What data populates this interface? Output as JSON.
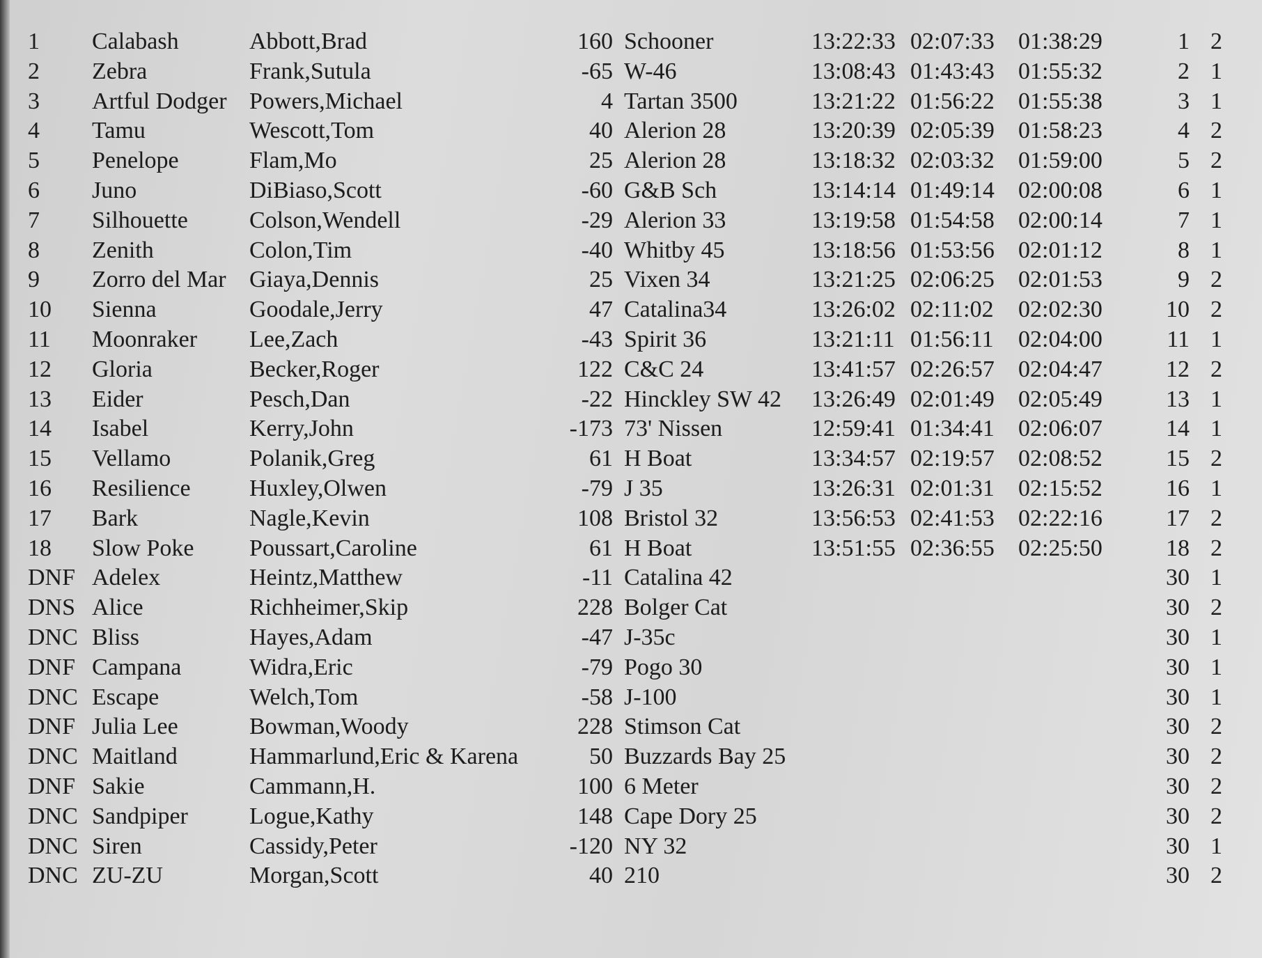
{
  "table": {
    "rows": [
      {
        "place": "1",
        "boat": "Calabash",
        "skipper": "Abbott,Brad",
        "rating": "160",
        "type": "Schooner",
        "finish": "13:22:33",
        "elapsed": "02:07:33",
        "corrected": "01:38:29",
        "points": "1",
        "division": "2"
      },
      {
        "place": "2",
        "boat": "Zebra",
        "skipper": "Frank,Sutula",
        "rating": "-65",
        "type": "W-46",
        "finish": "13:08:43",
        "elapsed": "01:43:43",
        "corrected": "01:55:32",
        "points": "2",
        "division": "1"
      },
      {
        "place": "3",
        "boat": "Artful Dodger",
        "skipper": "Powers,Michael",
        "rating": "4",
        "type": "Tartan 3500",
        "finish": "13:21:22",
        "elapsed": "01:56:22",
        "corrected": "01:55:38",
        "points": "3",
        "division": "1"
      },
      {
        "place": "4",
        "boat": "Tamu",
        "skipper": "Wescott,Tom",
        "rating": "40",
        "type": "Alerion 28",
        "finish": "13:20:39",
        "elapsed": "02:05:39",
        "corrected": "01:58:23",
        "points": "4",
        "division": "2"
      },
      {
        "place": "5",
        "boat": "Penelope",
        "skipper": "Flam,Mo",
        "rating": "25",
        "type": "Alerion 28",
        "finish": "13:18:32",
        "elapsed": "02:03:32",
        "corrected": "01:59:00",
        "points": "5",
        "division": "2"
      },
      {
        "place": "6",
        "boat": "Juno",
        "skipper": "DiBiaso,Scott",
        "rating": "-60",
        "type": "G&B Sch",
        "finish": "13:14:14",
        "elapsed": "01:49:14",
        "corrected": "02:00:08",
        "points": "6",
        "division": "1"
      },
      {
        "place": "7",
        "boat": "Silhouette",
        "skipper": "Colson,Wendell",
        "rating": "-29",
        "type": "Alerion 33",
        "finish": "13:19:58",
        "elapsed": "01:54:58",
        "corrected": "02:00:14",
        "points": "7",
        "division": "1"
      },
      {
        "place": "8",
        "boat": "Zenith",
        "skipper": "Colon,Tim",
        "rating": "-40",
        "type": "Whitby 45",
        "finish": "13:18:56",
        "elapsed": "01:53:56",
        "corrected": "02:01:12",
        "points": "8",
        "division": "1"
      },
      {
        "place": "9",
        "boat": "Zorro del Mar",
        "skipper": "Giaya,Dennis",
        "rating": "25",
        "type": "Vixen 34",
        "finish": "13:21:25",
        "elapsed": "02:06:25",
        "corrected": "02:01:53",
        "points": "9",
        "division": "2"
      },
      {
        "place": "10",
        "boat": "Sienna",
        "skipper": "Goodale,Jerry",
        "rating": "47",
        "type": "Catalina34",
        "finish": "13:26:02",
        "elapsed": "02:11:02",
        "corrected": "02:02:30",
        "points": "10",
        "division": "2"
      },
      {
        "place": "11",
        "boat": "Moonraker",
        "skipper": "Lee,Zach",
        "rating": "-43",
        "type": "Spirit 36",
        "finish": "13:21:11",
        "elapsed": "01:56:11",
        "corrected": "02:04:00",
        "points": "11",
        "division": "1"
      },
      {
        "place": "12",
        "boat": "Gloria",
        "skipper": "Becker,Roger",
        "rating": "122",
        "type": "C&C 24",
        "finish": "13:41:57",
        "elapsed": "02:26:57",
        "corrected": "02:04:47",
        "points": "12",
        "division": "2"
      },
      {
        "place": "13",
        "boat": "Eider",
        "skipper": "Pesch,Dan",
        "rating": "-22",
        "type": "Hinckley SW 42",
        "finish": "13:26:49",
        "elapsed": "02:01:49",
        "corrected": "02:05:49",
        "points": "13",
        "division": "1"
      },
      {
        "place": "14",
        "boat": "Isabel",
        "skipper": "Kerry,John",
        "rating": "-173",
        "type": "73' Nissen",
        "finish": "12:59:41",
        "elapsed": "01:34:41",
        "corrected": "02:06:07",
        "points": "14",
        "division": "1"
      },
      {
        "place": "15",
        "boat": "Vellamo",
        "skipper": "Polanik,Greg",
        "rating": "61",
        "type": "H Boat",
        "finish": "13:34:57",
        "elapsed": "02:19:57",
        "corrected": "02:08:52",
        "points": "15",
        "division": "2"
      },
      {
        "place": "16",
        "boat": "Resilience",
        "skipper": "Huxley,Olwen",
        "rating": "-79",
        "type": "J 35",
        "finish": "13:26:31",
        "elapsed": "02:01:31",
        "corrected": "02:15:52",
        "points": "16",
        "division": "1"
      },
      {
        "place": "17",
        "boat": "Bark",
        "skipper": "Nagle,Kevin",
        "rating": "108",
        "type": "Bristol 32",
        "finish": "13:56:53",
        "elapsed": "02:41:53",
        "corrected": "02:22:16",
        "points": "17",
        "division": "2"
      },
      {
        "place": "18",
        "boat": "Slow Poke",
        "skipper": "Poussart,Caroline",
        "rating": "61",
        "type": "H Boat",
        "finish": "13:51:55",
        "elapsed": "02:36:55",
        "corrected": "02:25:50",
        "points": "18",
        "division": "2"
      },
      {
        "place": "DNF",
        "boat": "Adelex",
        "skipper": "Heintz,Matthew",
        "rating": "-11",
        "type": "Catalina 42",
        "points": "30",
        "division": "1"
      },
      {
        "place": "DNS",
        "boat": "Alice",
        "skipper": "Richheimer,Skip",
        "rating": "228",
        "type": "Bolger Cat",
        "points": "30",
        "division": "2"
      },
      {
        "place": "DNC",
        "boat": "Bliss",
        "skipper": "Hayes,Adam",
        "rating": "-47",
        "type": "J-35c",
        "points": "30",
        "division": "1"
      },
      {
        "place": "DNF",
        "boat": "Campana",
        "skipper": "Widra,Eric",
        "rating": "-79",
        "type": "Pogo 30",
        "points": "30",
        "division": "1"
      },
      {
        "place": "DNC",
        "boat": "Escape",
        "skipper": "Welch,Tom",
        "rating": "-58",
        "type": "J-100",
        "points": "30",
        "division": "1"
      },
      {
        "place": "DNF",
        "boat": "Julia Lee",
        "skipper": "Bowman,Woody",
        "rating": "228",
        "type": "Stimson Cat",
        "points": "30",
        "division": "2"
      },
      {
        "place": "DNC",
        "boat": "Maitland",
        "skipper": "Hammarlund,Eric & Karena",
        "rating": "50",
        "type": "Buzzards Bay 25",
        "points": "30",
        "division": "2"
      },
      {
        "place": "DNF",
        "boat": "Sakie",
        "skipper": "Cammann,H.",
        "rating": "100",
        "type": "6 Meter",
        "points": "30",
        "division": "2"
      },
      {
        "place": "DNC",
        "boat": "Sandpiper",
        "skipper": "Logue,Kathy",
        "rating": "148",
        "type": "Cape Dory 25",
        "points": "30",
        "division": "2"
      },
      {
        "place": "DNC",
        "boat": "Siren",
        "skipper": "Cassidy,Peter",
        "rating": "-120",
        "type": "NY 32",
        "points": "30",
        "division": "1"
      },
      {
        "place": "DNC",
        "boat": "ZU-ZU",
        "skipper": "Morgan,Scott",
        "rating": "40",
        "type": "210",
        "points": "30",
        "division": "2"
      }
    ]
  }
}
